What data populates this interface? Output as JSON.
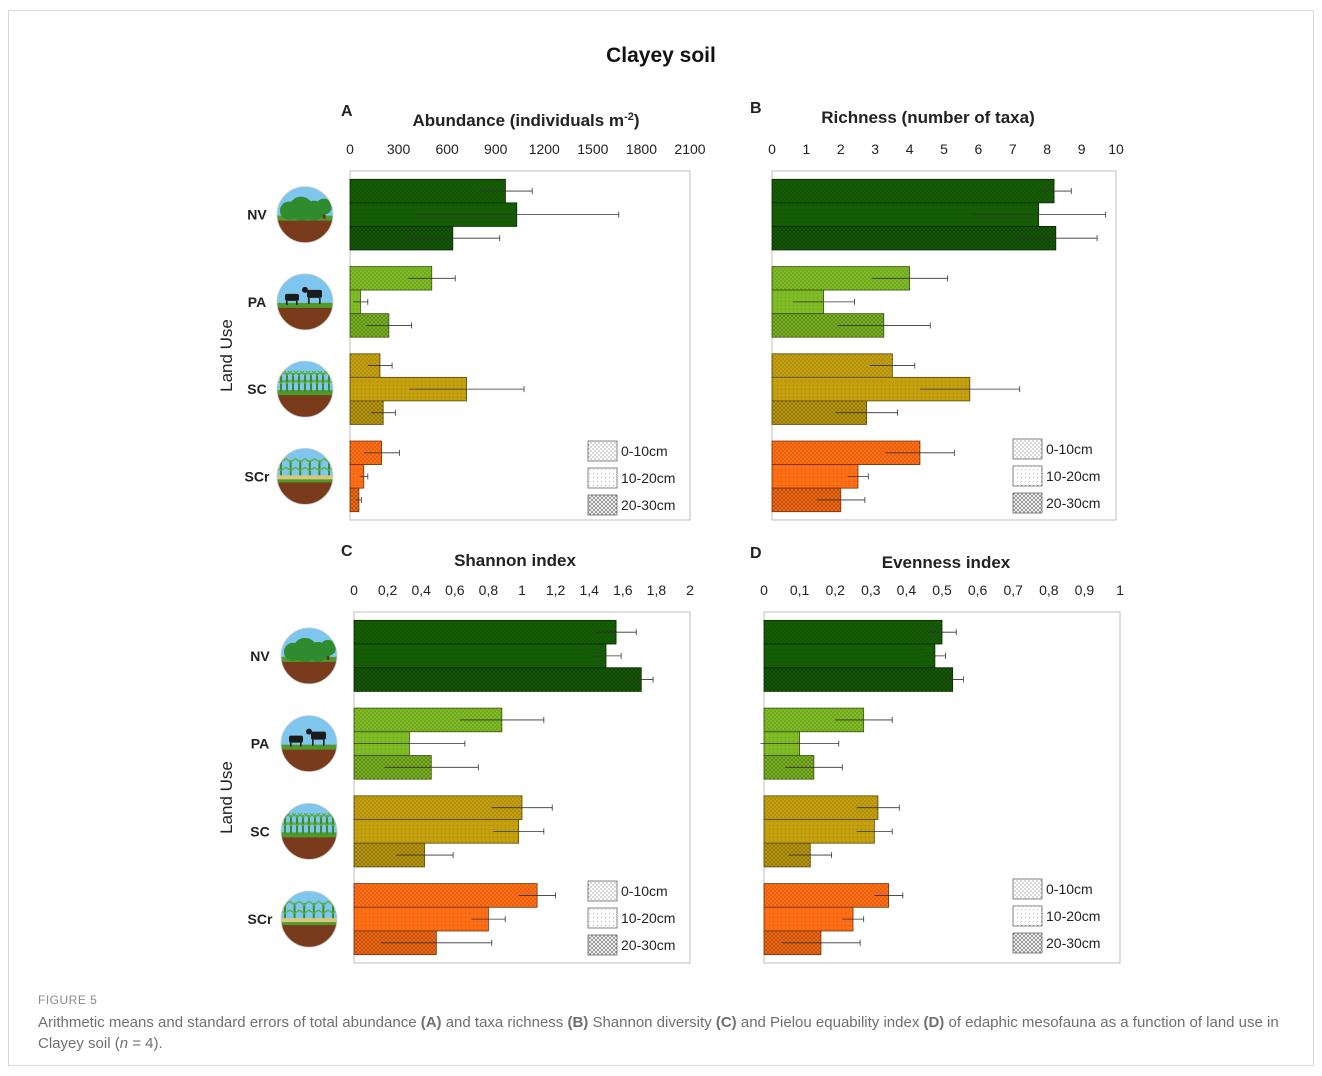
{
  "figure": {
    "title": "Clayey soil",
    "caption_label": "FIGURE 5",
    "caption": {
      "t1": "Arithmetic means and standard errors of total abundance ",
      "b1": "(A)",
      "t2": " and taxa richness ",
      "b2": "(B)",
      "t3": " Shannon diversity ",
      "b3": "(C)",
      "t4": " and Pielou equability index ",
      "b4": "(D)",
      "t5": " of edaphic mesofauna as a function of land use in Clayey soil (",
      "n": "n",
      "t6": " = 4)."
    }
  },
  "colors": {
    "NV": "#155d05",
    "PA": "#7fbb24",
    "SC": "#c4a00f",
    "SCr": "#ff6d14"
  },
  "groups": [
    "NV",
    "PA",
    "SC",
    "SCr"
  ],
  "y_axis_label": "Land Use",
  "legend": [
    "0-10cm",
    "10-20cm",
    "20-30cm"
  ],
  "chart_data": [
    {
      "type": "bar",
      "panel": "A",
      "title": "Abundance (individuals m",
      "title_sup": "-2",
      "title_end": ")",
      "ticks": [
        "0",
        "300",
        "600",
        "900",
        "1200",
        "1500",
        "1800",
        "2100"
      ],
      "xlim": [
        0,
        2100
      ],
      "categories": [
        "NV",
        "PA",
        "SC",
        "SCr"
      ],
      "series": [
        {
          "name": "0-10cm",
          "values": [
            960,
            505,
            185,
            195
          ],
          "errors": [
            165,
            145,
            75,
            110
          ]
        },
        {
          "name": "10-20cm",
          "values": [
            1030,
            65,
            720,
            85
          ],
          "errors": [
            630,
            45,
            355,
            25
          ]
        },
        {
          "name": "20-30cm",
          "values": [
            635,
            240,
            205,
            55
          ],
          "errors": [
            290,
            140,
            75,
            15
          ]
        }
      ]
    },
    {
      "type": "bar",
      "panel": "B",
      "title": "Richness (number of taxa)",
      "ticks": [
        "0",
        "1",
        "2",
        "3",
        "4",
        "5",
        "6",
        "7",
        "8",
        "9",
        "10"
      ],
      "xlim": [
        0,
        10
      ],
      "categories": [
        "NV",
        "PA",
        "SC",
        "SCr"
      ],
      "series": [
        {
          "name": "0-10cm",
          "values": [
            8.2,
            4.0,
            3.5,
            4.3
          ],
          "errors": [
            0.5,
            1.1,
            0.65,
            1.0
          ]
        },
        {
          "name": "10-20cm",
          "values": [
            7.75,
            1.5,
            5.75,
            2.5
          ],
          "errors": [
            1.95,
            0.9,
            1.45,
            0.3
          ]
        },
        {
          "name": "20-30cm",
          "values": [
            8.25,
            3.25,
            2.75,
            2.0
          ],
          "errors": [
            1.2,
            1.35,
            0.9,
            0.7
          ]
        }
      ]
    },
    {
      "type": "bar",
      "panel": "C",
      "title": "Shannon index",
      "ticks": [
        "0",
        "0,2",
        "0,4",
        "0,6",
        "0,8",
        "1",
        "1,2",
        "1,4",
        "1,6",
        "1,8",
        "2"
      ],
      "xlim": [
        0,
        2
      ],
      "categories": [
        "NV",
        "PA",
        "SC",
        "SCr"
      ],
      "series": [
        {
          "name": "0-10cm",
          "values": [
            1.56,
            0.88,
            1.0,
            1.09
          ],
          "errors": [
            0.12,
            0.25,
            0.18,
            0.11
          ]
        },
        {
          "name": "10-20cm",
          "values": [
            1.5,
            0.33,
            0.98,
            0.8
          ],
          "errors": [
            0.09,
            0.33,
            0.15,
            0.1
          ]
        },
        {
          "name": "20-30cm",
          "values": [
            1.71,
            0.46,
            0.42,
            0.49
          ],
          "errors": [
            0.07,
            0.28,
            0.17,
            0.33
          ]
        }
      ]
    },
    {
      "type": "bar",
      "panel": "D",
      "title": "Evenness index",
      "ticks": [
        "0",
        "0,1",
        "0,2",
        "0,3",
        "0,4",
        "0,5",
        "0,6",
        "0,7",
        "0,8",
        "0,9",
        "1"
      ],
      "xlim": [
        0,
        1
      ],
      "categories": [
        "NV",
        "PA",
        "SC",
        "SCr"
      ],
      "series": [
        {
          "name": "0-10cm",
          "values": [
            0.5,
            0.28,
            0.32,
            0.35
          ],
          "errors": [
            0.04,
            0.08,
            0.06,
            0.04
          ]
        },
        {
          "name": "10-20cm",
          "values": [
            0.48,
            0.1,
            0.31,
            0.25
          ],
          "errors": [
            0.03,
            0.11,
            0.05,
            0.03
          ]
        },
        {
          "name": "20-30cm",
          "values": [
            0.53,
            0.14,
            0.13,
            0.16
          ],
          "errors": [
            0.03,
            0.08,
            0.06,
            0.11
          ]
        }
      ]
    }
  ]
}
